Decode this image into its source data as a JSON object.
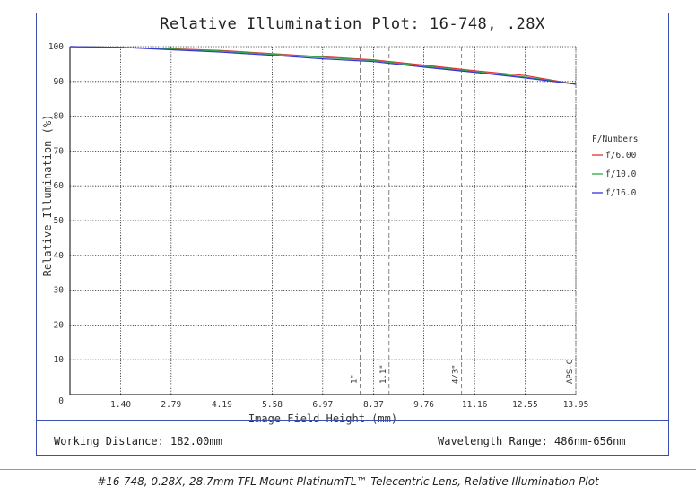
{
  "chart_data": {
    "type": "line",
    "title": "Relative Illumination Plot: 16-748, .28X",
    "xlabel": "Image Field Height (mm)",
    "ylabel": "Relative Illumination (%)",
    "xlim": [
      0,
      13.95
    ],
    "ylim": [
      0,
      100
    ],
    "x_ticks": [
      "1.40",
      "2.79",
      "4.19",
      "5.58",
      "6.97",
      "8.37",
      "9.76",
      "11.16",
      "12.55",
      "13.95"
    ],
    "y_ticks": [
      "0",
      "10",
      "20",
      "30",
      "40",
      "50",
      "60",
      "70",
      "80",
      "90",
      "100"
    ],
    "grid": true,
    "legend_title": "F/Numbers",
    "legend_position": "right",
    "sensor_markers": [
      {
        "label": "1\"",
        "x": 8.0
      },
      {
        "label": "1.1\"",
        "x": 8.8
      },
      {
        "label": "4/3\"",
        "x": 10.8
      },
      {
        "label": "APS-C",
        "x": 13.95
      }
    ],
    "x": [
      0,
      1.4,
      2.79,
      4.19,
      5.58,
      6.97,
      8.37,
      9.76,
      11.16,
      12.55,
      13.95
    ],
    "series": [
      {
        "name": "f/6.00",
        "color": "#e53030",
        "values": [
          100,
          99.8,
          99.4,
          98.9,
          98.0,
          97.1,
          96.2,
          94.7,
          93.1,
          91.7,
          89.2
        ]
      },
      {
        "name": "f/10.0",
        "color": "#2ea84a",
        "values": [
          100,
          99.8,
          99.3,
          98.7,
          97.8,
          96.9,
          96.0,
          94.4,
          92.8,
          91.3,
          89.2
        ]
      },
      {
        "name": "f/16.0",
        "color": "#3535d6",
        "values": [
          100,
          99.8,
          99.1,
          98.4,
          97.5,
          96.5,
          95.7,
          94.1,
          92.6,
          91.0,
          89.2
        ]
      }
    ]
  },
  "footer": {
    "working_distance": "Working Distance: 182.00mm",
    "wavelength_range": "Wavelength Range: 486nm-656nm"
  },
  "caption": "#16-748, 0.28X, 28.7mm TFL-Mount PlatinumTL™ Telecentric Lens, Relative Illumination Plot"
}
